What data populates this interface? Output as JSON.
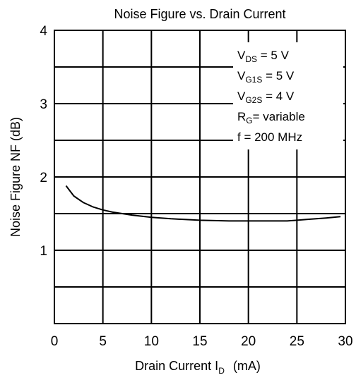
{
  "chart_data": {
    "type": "line",
    "title": "Noise Figure vs. Drain Current",
    "xlabel": {
      "main": "Drain  Current  I",
      "sub": "D",
      "unit": "(mA)"
    },
    "ylabel": "Noise Figure  NF  (dB)",
    "xlim": [
      0,
      30
    ],
    "ylim": [
      0,
      4
    ],
    "x_ticks": [
      "0",
      "5",
      "10",
      "15",
      "20",
      "25",
      "30"
    ],
    "y_ticks": [
      "1",
      "2",
      "3",
      "4"
    ],
    "grid": true,
    "series": [
      {
        "x": [
          1.2,
          2,
          3,
          4,
          5,
          6,
          8,
          10,
          12,
          15,
          18,
          20,
          22,
          24,
          25,
          26,
          28,
          29.5
        ],
        "y": [
          1.88,
          1.74,
          1.65,
          1.59,
          1.55,
          1.52,
          1.48,
          1.45,
          1.43,
          1.41,
          1.4,
          1.4,
          1.4,
          1.4,
          1.41,
          1.42,
          1.44,
          1.46
        ]
      }
    ],
    "annotations": [
      {
        "main": "V",
        "sub": "DS",
        "tail": " = 5 V"
      },
      {
        "main": "V",
        "sub": "G1S",
        "tail": " = 5 V"
      },
      {
        "main": "V",
        "sub": "G2S",
        "tail": " = 4 V"
      },
      {
        "main": "R",
        "sub": "G",
        "tail": "= variable"
      },
      {
        "main": "f = 200 MHz",
        "sub": "",
        "tail": ""
      }
    ]
  }
}
